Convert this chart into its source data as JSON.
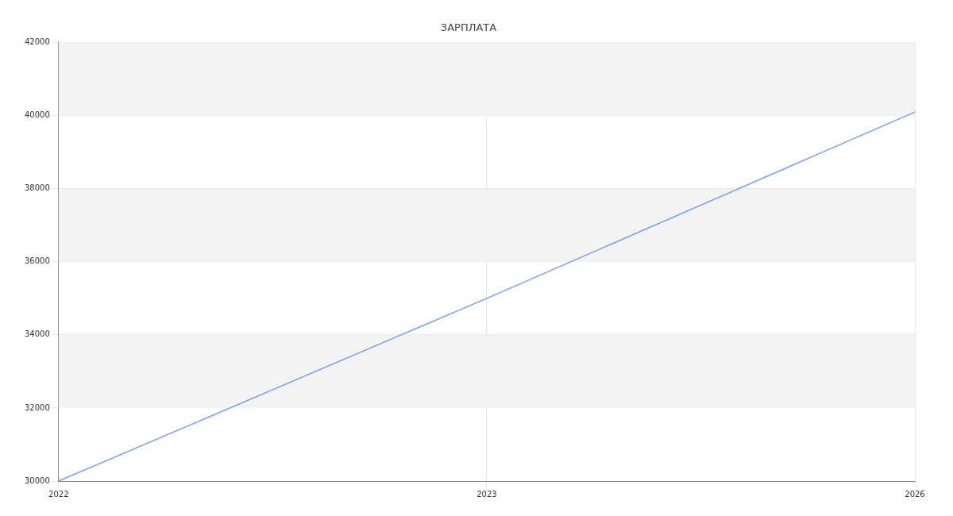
{
  "chart_data": {
    "type": "line",
    "title": "ЗАРПЛАТА",
    "categories": [
      "2022",
      "2023",
      "2026"
    ],
    "series": [
      {
        "color": "#779ef0",
        "values": [
          30000,
          35000,
          40100
        ]
      }
    ],
    "ylim": [
      30000,
      42000
    ],
    "yticks": [
      30000,
      32000,
      34000,
      36000,
      38000,
      40000,
      42000
    ],
    "bands": [
      {
        "axis": "y",
        "from": 32000,
        "to": 34000,
        "color": "#f3f3f3"
      },
      {
        "axis": "y",
        "from": 36000,
        "to": 38000,
        "color": "#f3f3f3"
      },
      {
        "axis": "y",
        "from": 40000,
        "to": 42000,
        "color": "#f3f3f3"
      }
    ],
    "grid": true,
    "legend": false,
    "marker": "none",
    "line_style": "solid"
  }
}
